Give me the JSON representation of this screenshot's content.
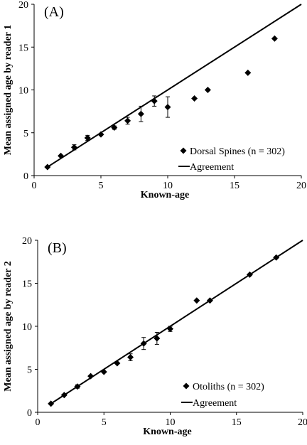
{
  "chart_data": [
    {
      "type": "scatter",
      "panel_label": "(A)",
      "xlabel": "Known-age",
      "ylabel": "Mean assigned age by reader 1",
      "xlim": [
        0,
        20
      ],
      "ylim": [
        0,
        20
      ],
      "xticks": [
        0,
        5,
        10,
        15,
        20
      ],
      "yticks": [
        0,
        5,
        10,
        15,
        20
      ],
      "grid": false,
      "legend_position": "bottom-right",
      "series": [
        {
          "name": "Dorsal Spines (n = 302)",
          "marker": "diamond",
          "points": [
            {
              "x": 1,
              "y": 1.0
            },
            {
              "x": 2,
              "y": 2.3
            },
            {
              "x": 3,
              "y": 3.3,
              "err": 0.3
            },
            {
              "x": 4,
              "y": 4.4,
              "err": 0.3
            },
            {
              "x": 5,
              "y": 4.8
            },
            {
              "x": 6,
              "y": 5.6,
              "err": 0.2
            },
            {
              "x": 7,
              "y": 6.4,
              "err": 0.4
            },
            {
              "x": 8,
              "y": 7.2,
              "err": 0.9
            },
            {
              "x": 9,
              "y": 8.7,
              "err": 0.6
            },
            {
              "x": 10,
              "y": 8.0,
              "err": 1.2
            },
            {
              "x": 12,
              "y": 9.0
            },
            {
              "x": 13,
              "y": 10.0
            },
            {
              "x": 16,
              "y": 12.0
            },
            {
              "x": 18,
              "y": 16.0
            }
          ]
        },
        {
          "name": "Agreement",
          "type": "line",
          "x": [
            1,
            20
          ],
          "y": [
            1,
            20
          ]
        }
      ]
    },
    {
      "type": "scatter",
      "panel_label": "(B)",
      "xlabel": "Known-age",
      "ylabel": "Mean assigned age by reader 2",
      "xlim": [
        0,
        20
      ],
      "ylim": [
        0,
        20
      ],
      "xticks": [
        0,
        5,
        10,
        15,
        20
      ],
      "yticks": [
        0,
        5,
        10,
        15,
        20
      ],
      "grid": false,
      "legend_position": "bottom-right",
      "series": [
        {
          "name": "Otoliths (n = 302)",
          "marker": "diamond",
          "points": [
            {
              "x": 1,
              "y": 1.0
            },
            {
              "x": 2,
              "y": 2.0
            },
            {
              "x": 3,
              "y": 3.0,
              "err": 0.2
            },
            {
              "x": 4,
              "y": 4.2
            },
            {
              "x": 5,
              "y": 4.7
            },
            {
              "x": 6,
              "y": 5.7
            },
            {
              "x": 7,
              "y": 6.4,
              "err": 0.4
            },
            {
              "x": 8,
              "y": 8.0,
              "err": 0.7
            },
            {
              "x": 9,
              "y": 8.6,
              "err": 0.7
            },
            {
              "x": 10,
              "y": 9.7,
              "err": 0.3
            },
            {
              "x": 12,
              "y": 13.0
            },
            {
              "x": 13,
              "y": 13.0
            },
            {
              "x": 16,
              "y": 16.0
            },
            {
              "x": 18,
              "y": 18.0
            }
          ]
        },
        {
          "name": "Agreement",
          "type": "line",
          "x": [
            1,
            20
          ],
          "y": [
            1,
            20
          ]
        }
      ]
    }
  ]
}
